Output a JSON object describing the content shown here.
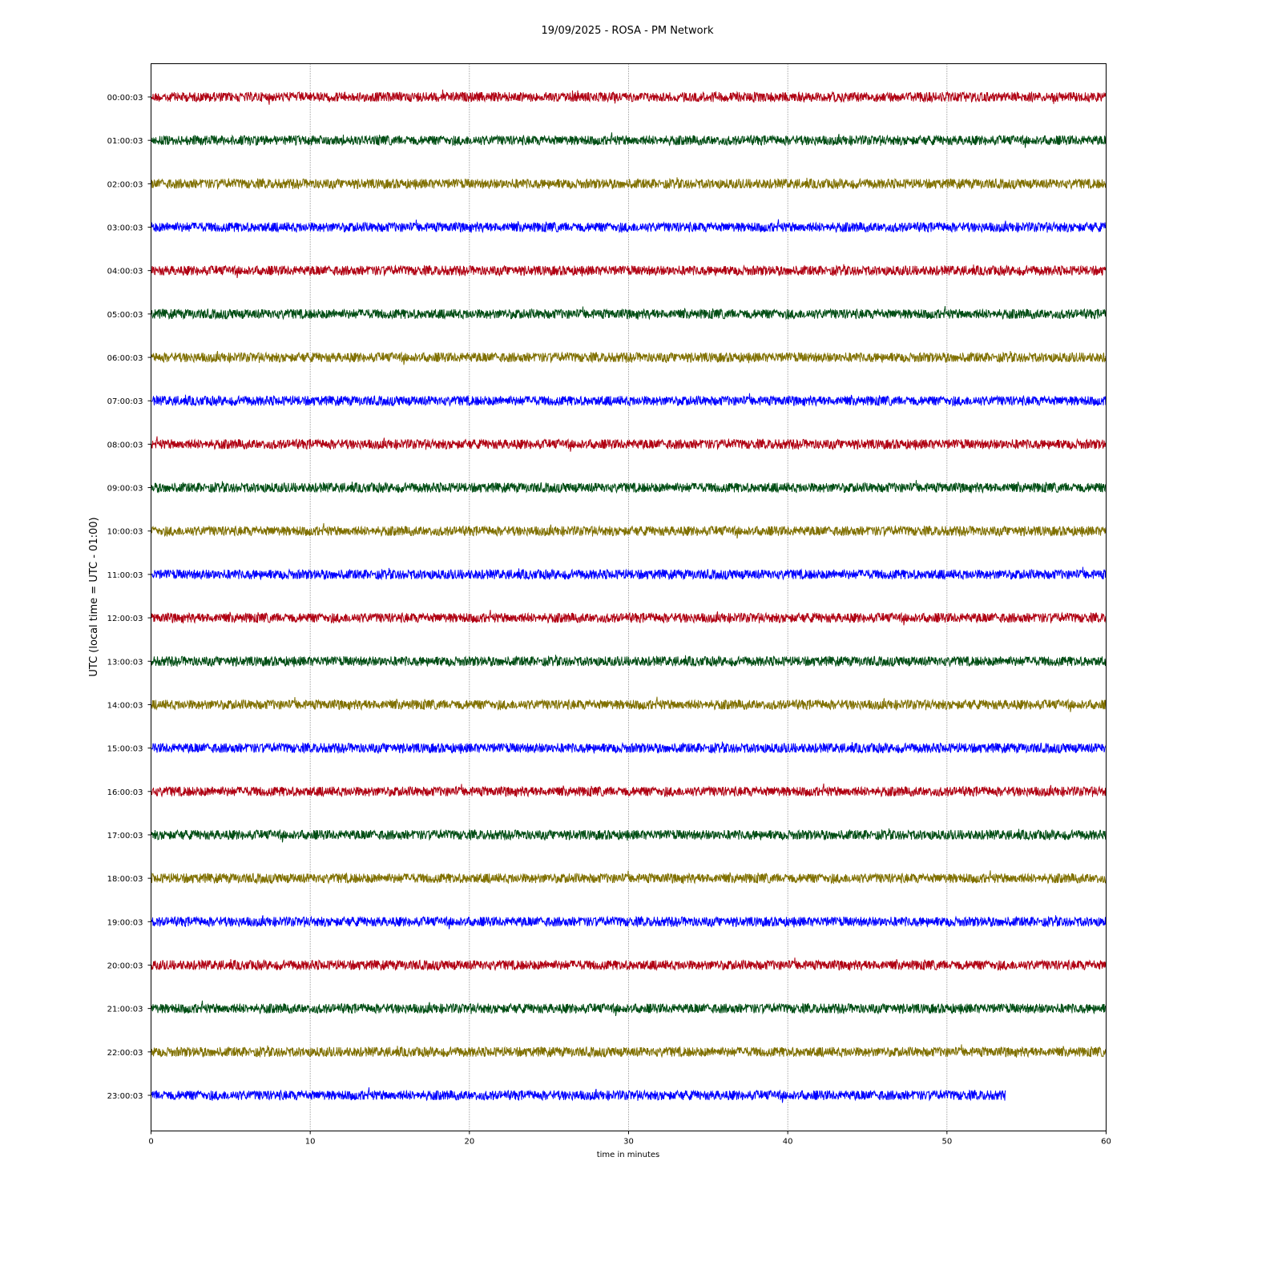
{
  "chart_data": {
    "type": "line",
    "title": "19/09/2025 - ROSA - PM Network",
    "xlabel": "time in minutes",
    "ylabel": "UTC (local time = UTC - 01:00)",
    "xlim": [
      0,
      60
    ],
    "xticks": [
      "0",
      "10",
      "20",
      "30",
      "40",
      "50",
      "60"
    ],
    "grid": "vertical dotted at x ticks",
    "colors": [
      "#b00012",
      "#004d14",
      "#807000",
      "#0000ff"
    ],
    "traces": [
      {
        "label": "00:00:03",
        "end_minute": 60
      },
      {
        "label": "01:00:03",
        "end_minute": 60
      },
      {
        "label": "02:00:03",
        "end_minute": 60
      },
      {
        "label": "03:00:03",
        "end_minute": 60
      },
      {
        "label": "04:00:03",
        "end_minute": 60
      },
      {
        "label": "05:00:03",
        "end_minute": 60
      },
      {
        "label": "06:00:03",
        "end_minute": 60
      },
      {
        "label": "07:00:03",
        "end_minute": 60
      },
      {
        "label": "08:00:03",
        "end_minute": 60
      },
      {
        "label": "09:00:03",
        "end_minute": 60
      },
      {
        "label": "10:00:03",
        "end_minute": 60
      },
      {
        "label": "11:00:03",
        "end_minute": 60
      },
      {
        "label": "12:00:03",
        "end_minute": 60
      },
      {
        "label": "13:00:03",
        "end_minute": 60
      },
      {
        "label": "14:00:03",
        "end_minute": 60
      },
      {
        "label": "15:00:03",
        "end_minute": 60
      },
      {
        "label": "16:00:03",
        "end_minute": 60
      },
      {
        "label": "17:00:03",
        "end_minute": 60
      },
      {
        "label": "18:00:03",
        "end_minute": 60
      },
      {
        "label": "19:00:03",
        "end_minute": 60
      },
      {
        "label": "20:00:03",
        "end_minute": 60
      },
      {
        "label": "21:00:03",
        "end_minute": 60
      },
      {
        "label": "22:00:03",
        "end_minute": 60
      },
      {
        "label": "23:00:03",
        "end_minute": 53.7
      }
    ]
  }
}
